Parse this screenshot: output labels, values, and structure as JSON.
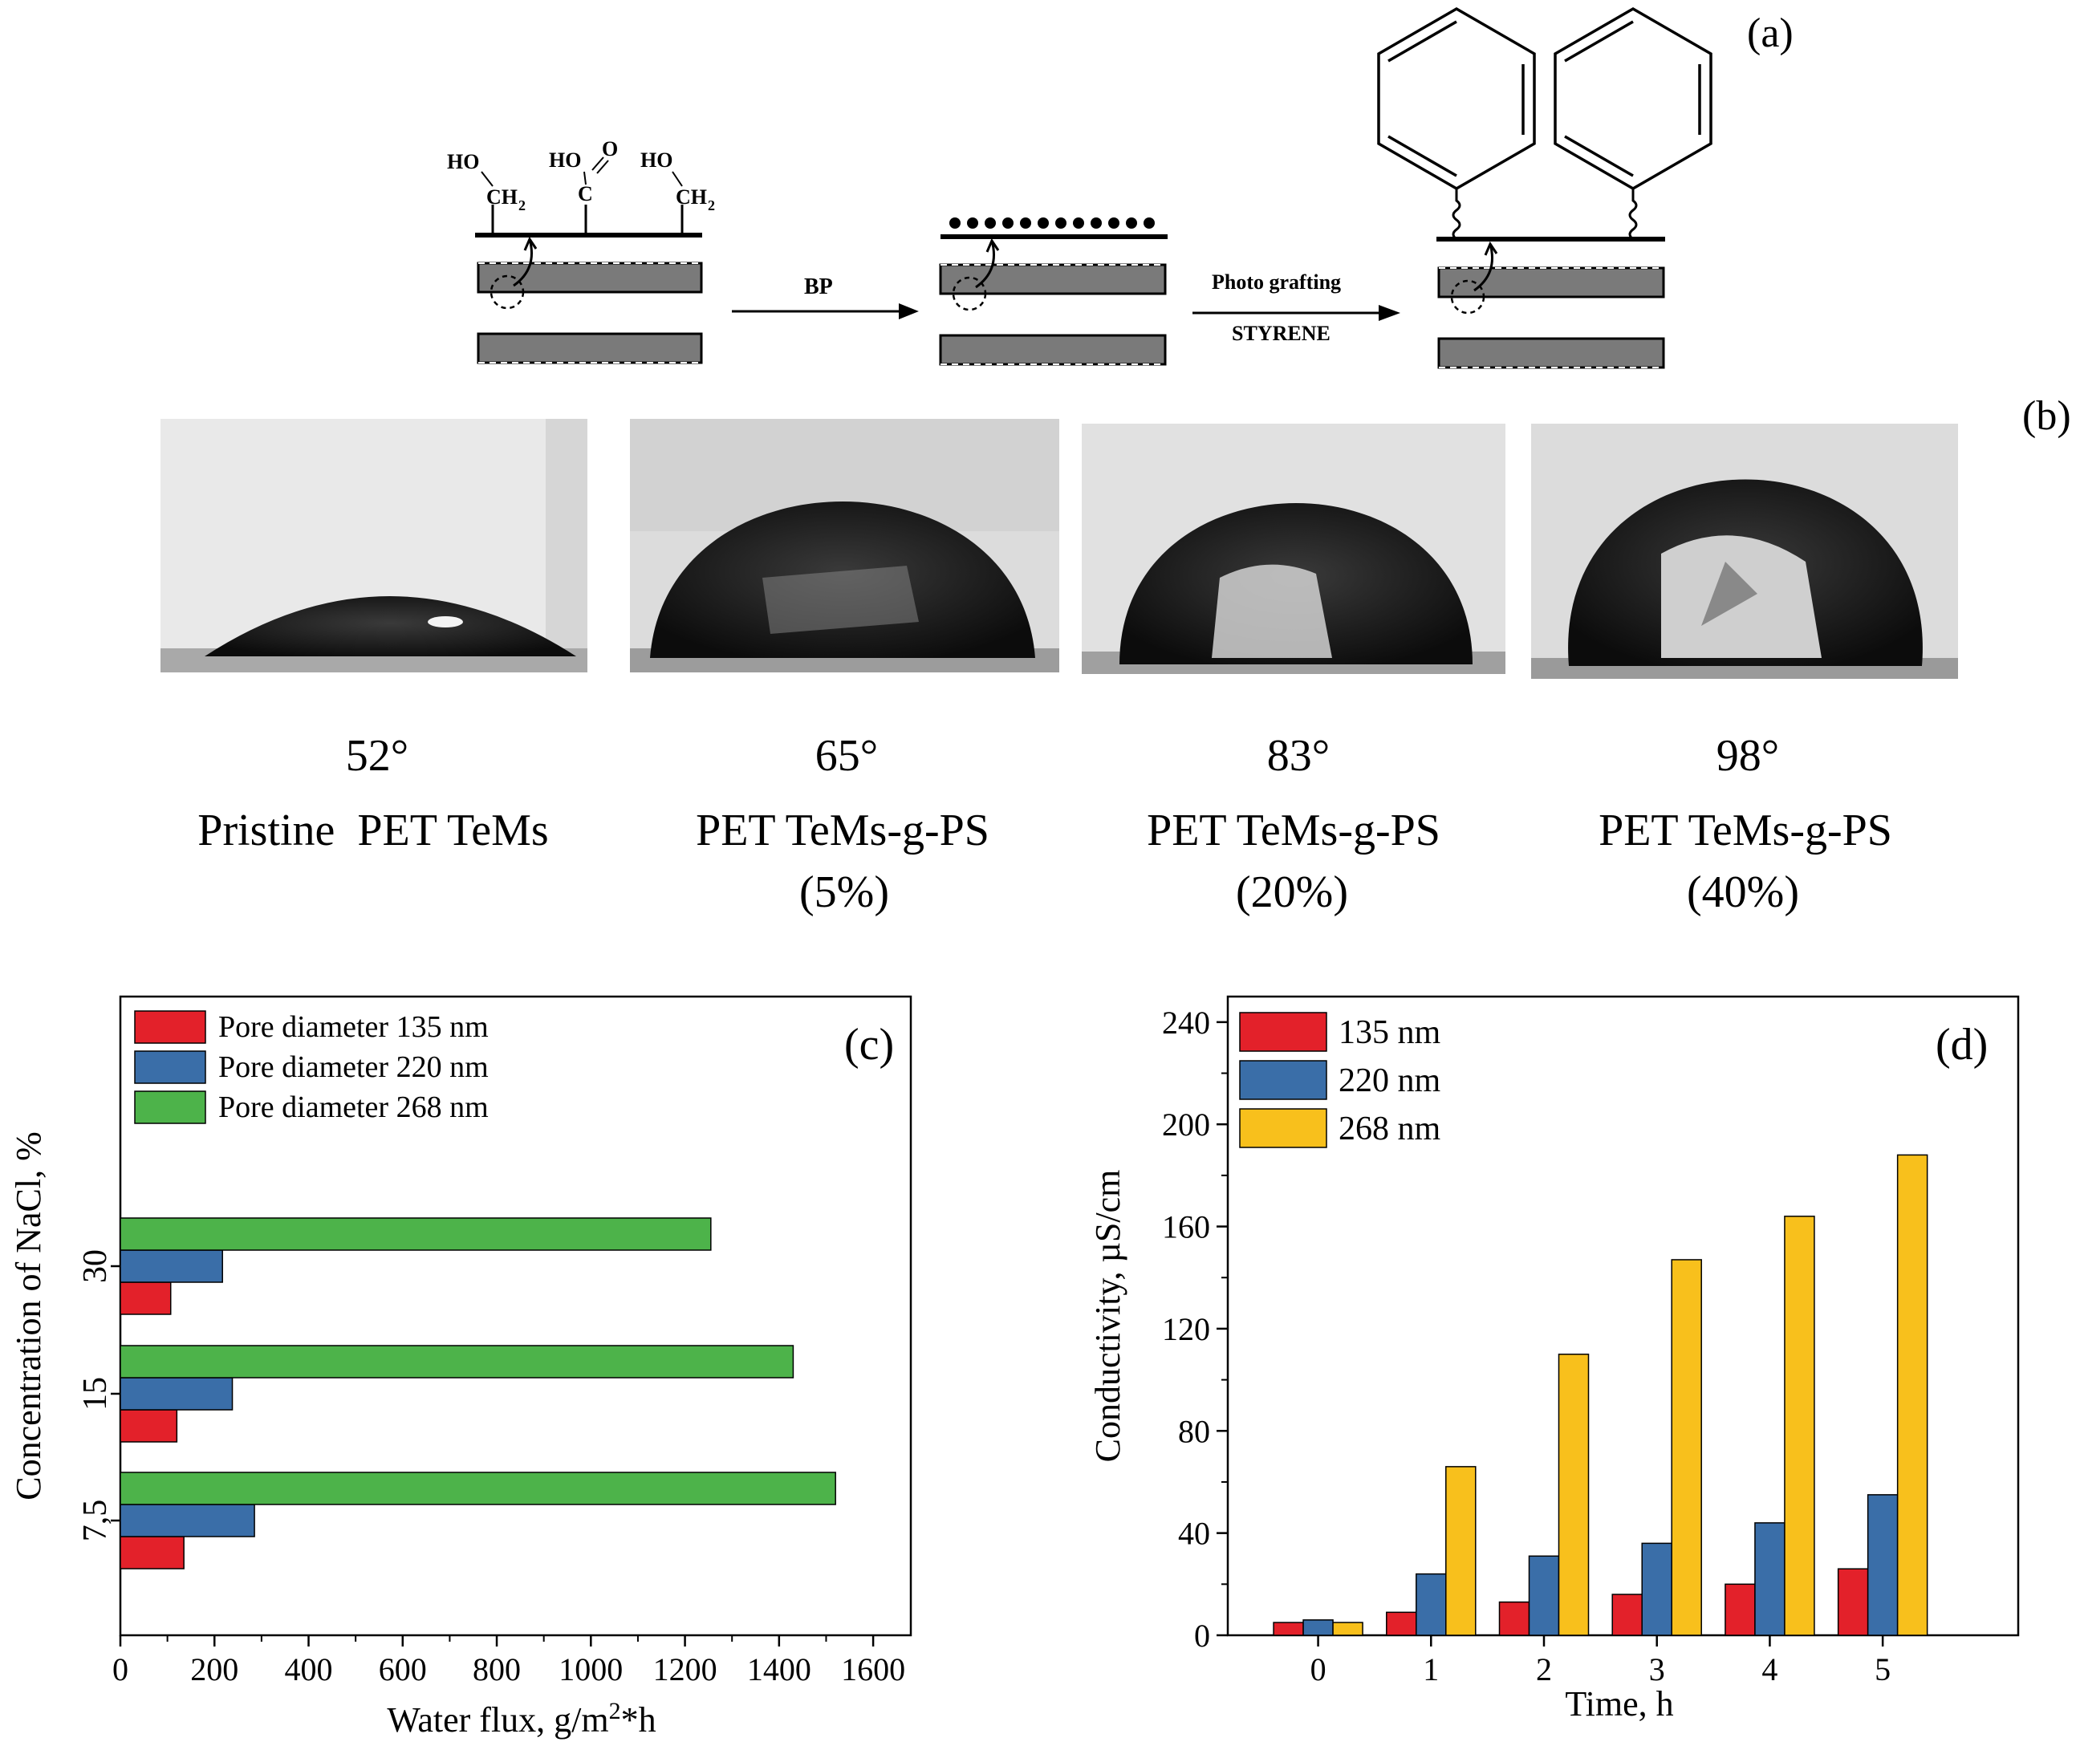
{
  "panels": {
    "a_label": "(a)",
    "b_label": "(b)",
    "c_label": "(c)",
    "d_label": "(d)"
  },
  "scheme": {
    "ho1": "HO",
    "ho2": "HO",
    "ho3": "HO",
    "ch2a": "CH",
    "ch2b": "CH",
    "sub2": "2",
    "carbon": "C",
    "oxygen": "O",
    "step1": "BP",
    "step2_top": "Photo grafting",
    "step2_bottom": "STYRENE"
  },
  "samples": [
    {
      "angle": "52°",
      "name": "Pristine  PET TeMs",
      "grafting": ""
    },
    {
      "angle": "65°",
      "name": "PET TeMs-g-PS",
      "grafting": "(5%)"
    },
    {
      "angle": "83°",
      "name": "PET TeMs-g-PS",
      "grafting": "(20%)"
    },
    {
      "angle": "98°",
      "name": "PET TeMs-g-PS",
      "grafting": "(40%)"
    }
  ],
  "colors": {
    "red": "#e3212a",
    "blue": "#3a6ea8",
    "green": "#4db34a",
    "yellow": "#f8c01c"
  },
  "chart_data": [
    {
      "type": "bar",
      "orientation": "horizontal",
      "panel": "(c)",
      "categories": [
        "7,5",
        "15",
        "30"
      ],
      "series": [
        {
          "name": "Pore diameter 135 nm",
          "color": "#e3212a",
          "values": [
            135,
            120,
            107
          ]
        },
        {
          "name": "Pore diameter 220 nm",
          "color": "#3a6ea8",
          "values": [
            285,
            238,
            217
          ]
        },
        {
          "name": "Pore diameter 268 nm",
          "color": "#4db34a",
          "values": [
            1520,
            1430,
            1255
          ]
        }
      ],
      "xlabel": "Water flux, g/m²*h",
      "ylabel": "Concentration of NaCl, %",
      "xlim": [
        0,
        1680
      ],
      "xticks": [
        "0",
        "200",
        "400",
        "600",
        "800",
        "1000",
        "1200",
        "1400",
        "1600"
      ],
      "legend": "top-left"
    },
    {
      "type": "bar",
      "orientation": "vertical",
      "panel": "(d)",
      "categories": [
        "0",
        "1",
        "2",
        "3",
        "4",
        "5"
      ],
      "series": [
        {
          "name": "135 nm",
          "color": "#e3212a",
          "values": [
            5,
            9,
            13,
            16,
            20,
            26
          ]
        },
        {
          "name": "220 nm",
          "color": "#3a6ea8",
          "values": [
            6,
            24,
            31,
            36,
            44,
            55
          ]
        },
        {
          "name": "268 nm",
          "color": "#f8c01c",
          "values": [
            5,
            66,
            110,
            147,
            164,
            188
          ]
        }
      ],
      "xlabel": "Time, h",
      "ylabel": "Conductivity, µS/cm",
      "ylim": [
        0,
        250
      ],
      "yticks": [
        "0",
        "40",
        "80",
        "120",
        "160",
        "200",
        "240"
      ],
      "legend": "top-left"
    }
  ]
}
